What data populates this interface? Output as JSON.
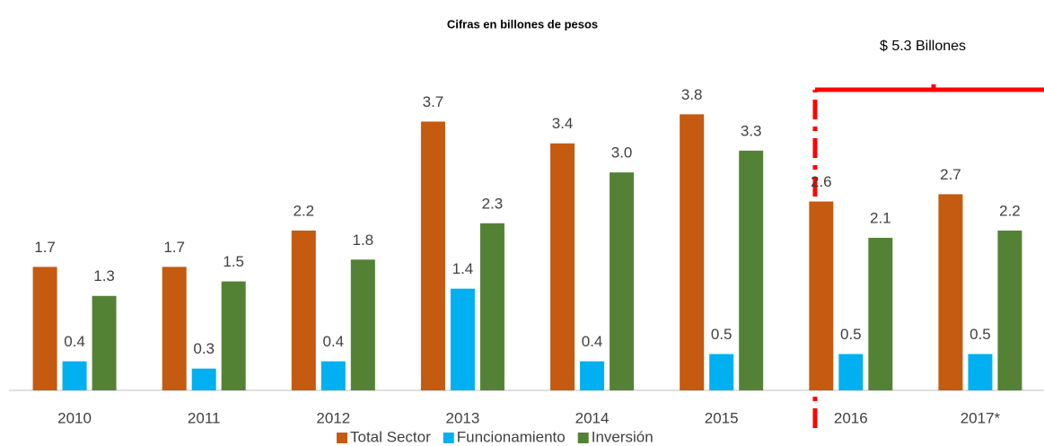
{
  "chart_data": {
    "type": "bar",
    "title": "Cifras en billones de pesos",
    "annotation": "$ 5.3 Billones",
    "categories": [
      "2010",
      "2011",
      "2012",
      "2013",
      "2014",
      "2015",
      "2016",
      "2017*"
    ],
    "series": [
      {
        "name": "Total Sector",
        "color": "#c55a11",
        "values": [
          1.7,
          1.7,
          2.2,
          3.7,
          3.4,
          3.8,
          2.6,
          2.7
        ],
        "value_labels": [
          "1.7",
          "1.7",
          "2.2",
          "3.7",
          "3.4",
          "3.8",
          "2.6",
          "2.7"
        ]
      },
      {
        "name": "Funcionamiento",
        "color": "#00b0f0",
        "values": [
          0.4,
          0.3,
          0.4,
          1.4,
          0.4,
          0.5,
          0.5,
          0.5
        ],
        "value_labels": [
          "0.4",
          "0.3",
          "0.4",
          "1.4",
          "0.4",
          "0.5",
          "0.5",
          "0.5"
        ]
      },
      {
        "name": "Inversión",
        "color": "#548235",
        "values": [
          1.3,
          1.5,
          1.8,
          2.3,
          3.0,
          3.3,
          2.1,
          2.2
        ],
        "value_labels": [
          "1.3",
          "1.5",
          "1.8",
          "2.3",
          "3.0",
          "3.3",
          "2.1",
          "2.2"
        ]
      }
    ],
    "ylim": [
      0,
      4.2
    ],
    "legend": "bottom"
  }
}
